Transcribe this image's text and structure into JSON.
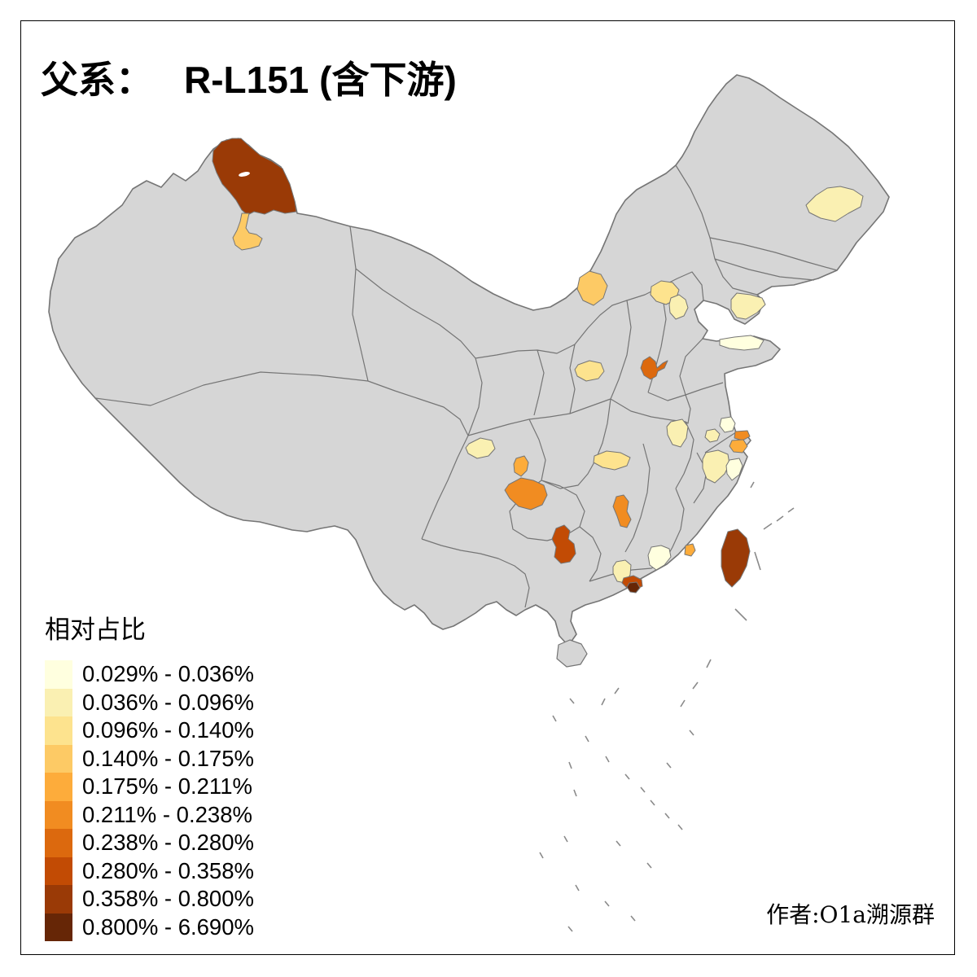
{
  "title": {
    "prefix": "父系：",
    "haplogroup": "R-L151",
    "suffix": "(含下游)"
  },
  "legend": {
    "title": "相对占比",
    "classes": [
      {
        "range": "0.029% - 0.036%",
        "color": "#FFFFDF"
      },
      {
        "range": "0.036% - 0.096%",
        "color": "#FAF0B2"
      },
      {
        "range": "0.096% - 0.140%",
        "color": "#FDE38E"
      },
      {
        "range": "0.140% - 0.175%",
        "color": "#FDCA65"
      },
      {
        "range": "0.175% - 0.211%",
        "color": "#FDAC3B"
      },
      {
        "range": "0.211% - 0.238%",
        "color": "#F18C21"
      },
      {
        "range": "0.238% - 0.280%",
        "color": "#DC690E"
      },
      {
        "range": "0.280% - 0.358%",
        "color": "#C24B04"
      },
      {
        "range": "0.358% - 0.800%",
        "color": "#9A3A06"
      },
      {
        "range": "0.800% - 6.690%",
        "color": "#662606"
      }
    ]
  },
  "attribution": "作者:O1a溯源群",
  "map": {
    "base_fill": "#D6D6D6",
    "border_color": "#757575",
    "sea_fill": "#FFFFFF",
    "regions": [
      {
        "name": "north-xinjiang-altay",
        "class": 9,
        "range": "0.358% - 0.800%"
      },
      {
        "name": "north-xinjiang-tacheng",
        "class": 4,
        "range": "0.140% - 0.175%"
      },
      {
        "name": "central-heilongjiang",
        "class": 2,
        "range": "0.036% - 0.096%"
      },
      {
        "name": "northern-shaanxi",
        "class": 4,
        "range": "0.140% - 0.175%"
      },
      {
        "name": "beijing",
        "class": 3,
        "range": "0.096% - 0.140%"
      },
      {
        "name": "tianjin",
        "class": 2,
        "range": "0.036% - 0.096%"
      },
      {
        "name": "liaodong-peninsula",
        "class": 2,
        "range": "0.036% - 0.096%"
      },
      {
        "name": "shandong-peninsula",
        "class": 1,
        "range": "0.029% - 0.036%"
      },
      {
        "name": "southern-shanxi",
        "class": 7,
        "range": "0.238% - 0.280%"
      },
      {
        "name": "central-shaanxi",
        "class": 3,
        "range": "0.096% - 0.140%"
      },
      {
        "name": "central-sichuan",
        "class": 2,
        "range": "0.036% - 0.096%"
      },
      {
        "name": "northern-hubei",
        "class": 3,
        "range": "0.096% - 0.140%"
      },
      {
        "name": "chongqing",
        "class": 5,
        "range": "0.175% - 0.211%"
      },
      {
        "name": "northern-guizhou",
        "class": 6,
        "range": "0.211% - 0.238%"
      },
      {
        "name": "northern-guangxi",
        "class": 8,
        "range": "0.280% - 0.358%"
      },
      {
        "name": "central-jiangxi",
        "class": 6,
        "range": "0.211% - 0.238%"
      },
      {
        "name": "central-anhui",
        "class": 2,
        "range": "0.036% - 0.096%"
      },
      {
        "name": "southern-jiangsu",
        "class": 2,
        "range": "0.036% - 0.096%"
      },
      {
        "name": "eastern-jiangsu",
        "class": 1,
        "range": "0.029% - 0.036%"
      },
      {
        "name": "suzhou",
        "class": 6,
        "range": "0.211% - 0.238%"
      },
      {
        "name": "shanghai",
        "class": 5,
        "range": "0.175% - 0.211%"
      },
      {
        "name": "northern-zhejiang",
        "class": 2,
        "range": "0.036% - 0.096%"
      },
      {
        "name": "eastern-zhejiang",
        "class": 1,
        "range": "0.029% - 0.036%"
      },
      {
        "name": "coastal-fujian",
        "class": 5,
        "range": "0.175% - 0.211%"
      },
      {
        "name": "southern-fujian",
        "class": 1,
        "range": "0.029% - 0.036%"
      },
      {
        "name": "northern-guangdong",
        "class": 2,
        "range": "0.036% - 0.096%"
      },
      {
        "name": "pearl-river-delta",
        "class": 8,
        "range": "0.280% - 0.358%"
      },
      {
        "name": "pearl-river-delta-core",
        "class": 10,
        "range": "0.800% - 6.690%"
      },
      {
        "name": "taiwan",
        "class": 9,
        "range": "0.358% - 0.800%"
      }
    ]
  }
}
